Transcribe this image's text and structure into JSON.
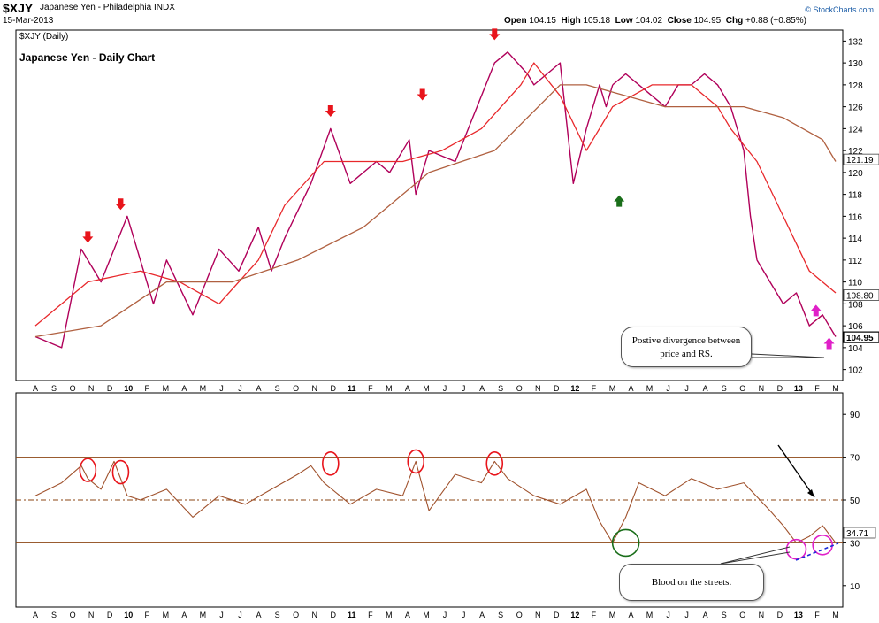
{
  "header": {
    "symbol": "$XJY",
    "description": "Japanese Yen - Philadelphia INDX",
    "date": "15-Mar-2013",
    "ohlc": {
      "open_label": "Open",
      "open": "104.15",
      "high_label": "High",
      "high": "105.18",
      "low_label": "Low",
      "low": "104.02",
      "close_label": "Close",
      "close": "104.95",
      "chg_label": "Chg",
      "chg": "+0.88 (+0.85%)"
    },
    "brand": "© StockCharts.com"
  },
  "chart_data": [
    {
      "type": "line",
      "panel": "price",
      "title": "Japanese Yen - Daily Chart",
      "legend": "$XJY (Daily)",
      "x_labels": [
        "A",
        "S",
        "O",
        "N",
        "D",
        "10",
        "F",
        "M",
        "A",
        "M",
        "J",
        "J",
        "A",
        "S",
        "O",
        "N",
        "D",
        "11",
        "F",
        "M",
        "A",
        "M",
        "J",
        "J",
        "A",
        "S",
        "O",
        "N",
        "D",
        "12",
        "F",
        "M",
        "A",
        "M",
        "J",
        "J",
        "A",
        "S",
        "O",
        "N",
        "D",
        "13",
        "F",
        "M"
      ],
      "ylim": [
        101,
        133
      ],
      "y_ticks": [
        102,
        104,
        106,
        108,
        110,
        112,
        114,
        116,
        118,
        120,
        122,
        124,
        126,
        128,
        130,
        132
      ],
      "series": [
        {
          "role": "price",
          "color": "#b0005a",
          "x": [
            0,
            2,
            3.5,
            5,
            7,
            9,
            10,
            12,
            14,
            15.5,
            17,
            18,
            19,
            21,
            22.5,
            24,
            26,
            27,
            28.5,
            29,
            30,
            32,
            33,
            35,
            36,
            37.5,
            38,
            39,
            40,
            41,
            42,
            43,
            43.5,
            44
          ],
          "values": [
            105,
            104,
            113,
            110,
            116,
            108,
            112,
            107,
            113,
            111,
            115,
            111,
            114,
            119,
            124,
            119,
            121,
            120,
            123,
            118,
            122,
            121,
            124,
            130,
            131,
            129,
            128,
            129,
            130,
            119,
            124,
            128,
            126,
            128
          ]
        },
        {
          "role": "price-cont",
          "color": "#b0005a",
          "x": [
            44,
            45,
            46,
            47,
            48,
            49,
            50,
            51,
            52,
            53,
            54,
            54.5,
            55
          ],
          "values": [
            128,
            129,
            128,
            127,
            126,
            128,
            128,
            129,
            128,
            126,
            122,
            116,
            112
          ]
        },
        {
          "role": "price-end",
          "color": "#b0005a",
          "x": [
            55,
            56,
            57,
            58,
            59,
            60,
            61
          ],
          "values": [
            112,
            110,
            108,
            109,
            106,
            107,
            105
          ]
        },
        {
          "role": "ma-short",
          "color": "#e8282b",
          "x": [
            0,
            4,
            8,
            11,
            14,
            17,
            19,
            22,
            25,
            28,
            31,
            34,
            37,
            38,
            40,
            42,
            44,
            47,
            50,
            52,
            53,
            55,
            57,
            59,
            61
          ],
          "values": [
            106,
            110,
            111,
            110,
            108,
            112,
            117,
            121,
            121,
            121,
            122,
            124,
            128,
            130,
            127,
            122,
            126,
            128,
            128,
            126,
            124,
            121,
            116,
            111,
            109
          ]
        },
        {
          "role": "ma-long",
          "color": "#b06040",
          "x": [
            0,
            5,
            10,
            15,
            20,
            25,
            30,
            35,
            40,
            42,
            45,
            48,
            51,
            54,
            57,
            60,
            61
          ],
          "values": [
            105,
            106,
            110,
            110,
            112,
            115,
            120,
            122,
            128,
            128,
            127,
            126,
            126,
            126,
            125,
            123,
            121
          ]
        }
      ],
      "price_labels": [
        "121.19",
        "108.80",
        "104.95"
      ],
      "annotations": {
        "down_arrows": [
          {
            "x": 4,
            "y": 113.5
          },
          {
            "x": 6.5,
            "y": 116.5
          },
          {
            "x": 22.5,
            "y": 125
          },
          {
            "x": 29.5,
            "y": 126.5
          },
          {
            "x": 35,
            "y": 132
          }
        ],
        "up_arrows_green": [
          {
            "x": 44.5,
            "y": 118
          }
        ],
        "up_arrows_magenta": [
          {
            "x": 59.5,
            "y": 108
          },
          {
            "x": 60.5,
            "y": 105
          }
        ],
        "callout": "Postive divergence between price and RS."
      }
    },
    {
      "type": "line",
      "panel": "rsi",
      "ylim": [
        0,
        100
      ],
      "y_ticks": [
        10,
        30,
        50,
        70,
        90
      ],
      "reference_lines": [
        30,
        50,
        70
      ],
      "series": [
        {
          "role": "rsi",
          "color": "#a0522d",
          "x": [
            0,
            2,
            3.5,
            4,
            5,
            6,
            7,
            8,
            10,
            12,
            14,
            16,
            18,
            20,
            21,
            22,
            24,
            26,
            28,
            29,
            30,
            32,
            34,
            35,
            36,
            38,
            40,
            42,
            43,
            44,
            45,
            46,
            48,
            50,
            52,
            54,
            56,
            57,
            58,
            59,
            60,
            61
          ],
          "values": [
            52,
            58,
            66,
            60,
            55,
            68,
            52,
            50,
            55,
            42,
            52,
            48,
            55,
            62,
            66,
            58,
            48,
            55,
            52,
            68,
            45,
            62,
            58,
            68,
            60,
            52,
            48,
            55,
            40,
            30,
            42,
            58,
            52,
            60,
            55,
            58,
            45,
            38,
            30,
            33,
            38,
            30
          ]
        }
      ],
      "annotations": {
        "red_circles": [
          {
            "x": 4,
            "y": 64
          },
          {
            "x": 6.5,
            "y": 63
          },
          {
            "x": 22.5,
            "y": 67
          },
          {
            "x": 29,
            "y": 68
          },
          {
            "x": 35,
            "y": 67
          }
        ],
        "green_circles": [
          {
            "x": 45,
            "y": 30
          }
        ],
        "magenta_circles": [
          {
            "x": 58,
            "y": 27
          },
          {
            "x": 60,
            "y": 29
          }
        ],
        "callout": "Blood on the streets."
      }
    }
  ]
}
